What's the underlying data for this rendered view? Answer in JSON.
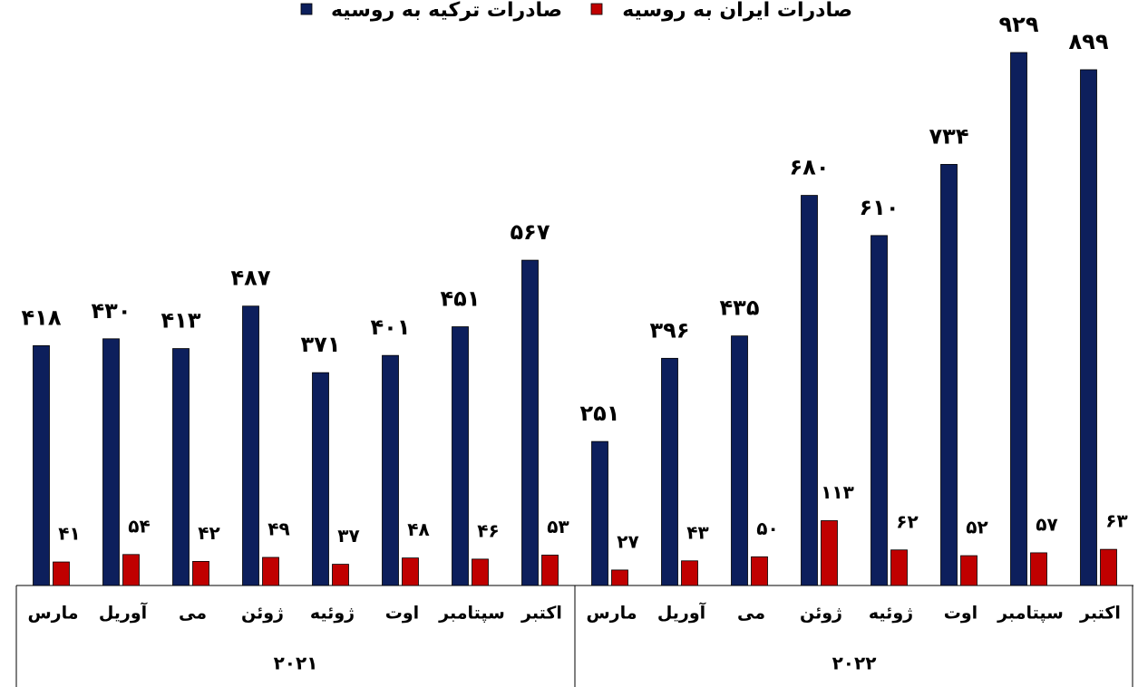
{
  "chart_data": {
    "type": "bar",
    "groups": [
      {
        "label": "۲۰۲۱",
        "categories": [
          "مارس",
          "آوریل",
          "می",
          "ژوئن",
          "ژوئیه",
          "اوت",
          "سپتامبر",
          "اکتبر"
        ]
      },
      {
        "label": "۲۰۲۲",
        "categories": [
          "مارس",
          "آوریل",
          "می",
          "ژوئن",
          "ژوئیه",
          "اوت",
          "سپتامبر",
          "اکتبر"
        ]
      }
    ],
    "series": [
      {
        "name": "صادرات ترکیه به روسیه",
        "color": "#0d1f5c",
        "values": [
          418,
          430,
          413,
          487,
          371,
          401,
          451,
          567,
          251,
          396,
          435,
          680,
          610,
          734,
          929,
          899
        ],
        "value_labels": [
          "۴۱۸",
          "۴۳۰",
          "۴۱۳",
          "۴۸۷",
          "۳۷۱",
          "۴۰۱",
          "۴۵۱",
          "۵۶۷",
          "۲۵۱",
          "۳۹۶",
          "۴۳۵",
          "۶۸۰",
          "۶۱۰",
          "۷۳۴",
          "۹۲۹",
          "۸۹۹"
        ]
      },
      {
        "name": "صادرات ایران به روسیه",
        "color": "#c00000",
        "values": [
          41,
          54,
          42,
          49,
          37,
          48,
          46,
          53,
          27,
          43,
          50,
          113,
          62,
          52,
          57,
          63
        ],
        "value_labels": [
          "۴۱",
          "۵۴",
          "۴۲",
          "۴۹",
          "۳۷",
          "۴۸",
          "۴۶",
          "۵۳",
          "۲۷",
          "۴۳",
          "۵۰",
          "۱۱۳",
          "۶۲",
          "۵۲",
          "۵۷",
          "۶۳"
        ]
      }
    ],
    "ylim": [
      0,
      1000
    ]
  }
}
